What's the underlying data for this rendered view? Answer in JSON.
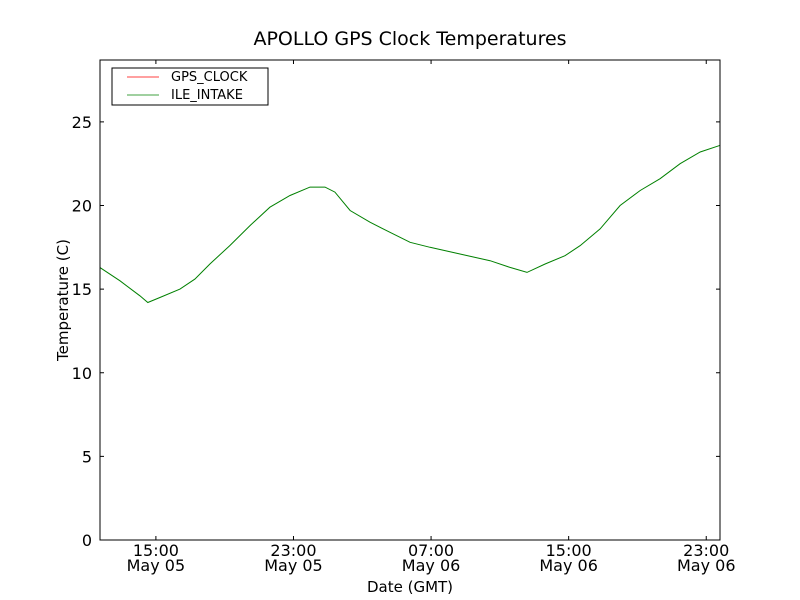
{
  "chart_data": {
    "type": "line",
    "title": "APOLLO GPS Clock Temperatures",
    "xlabel": "Date (GMT)",
    "ylabel": "Temperature (C)",
    "x_unit": "hours since May 05 00:00 GMT",
    "xlim": [
      11.75,
      47.8
    ],
    "ylim": [
      0,
      28.7
    ],
    "yticks": [
      0,
      5,
      10,
      15,
      20,
      25
    ],
    "xticks": [
      {
        "value": 15,
        "time": "15:00",
        "date": "May 05"
      },
      {
        "value": 23,
        "time": "23:00",
        "date": "May 05"
      },
      {
        "value": 31,
        "time": "07:00",
        "date": "May 06"
      },
      {
        "value": 39,
        "time": "15:00",
        "date": "May 06"
      },
      {
        "value": 47,
        "time": "23:00",
        "date": "May 06"
      }
    ],
    "grid": false,
    "legend_position": "top-left",
    "series": [
      {
        "name": "GPS_CLOCK",
        "color": "#ff0000",
        "x": [],
        "values": []
      },
      {
        "name": "ILE_INTAKE",
        "color": "#008000",
        "x": [
          11.74,
          12.91,
          14.07,
          14.53,
          15.23,
          16.4,
          17.27,
          18.14,
          19.3,
          20.47,
          21.63,
          22.8,
          23.96,
          24.83,
          25.41,
          26.29,
          27.45,
          28.61,
          29.78,
          30.94,
          32.68,
          34.43,
          35.59,
          36.58,
          37.63,
          38.79,
          39.67,
          40.83,
          41.99,
          43.16,
          44.32,
          45.48,
          46.65,
          47.81
        ],
        "values": [
          16.3,
          15.5,
          14.6,
          14.2,
          14.5,
          15.0,
          15.6,
          16.5,
          17.6,
          18.8,
          19.9,
          20.6,
          21.1,
          21.1,
          20.8,
          19.7,
          19.0,
          18.4,
          17.8,
          17.5,
          17.1,
          16.7,
          16.3,
          16.0,
          16.5,
          17.0,
          17.6,
          18.6,
          20.0,
          20.9,
          21.6,
          22.5,
          23.2,
          23.6
        ]
      }
    ]
  }
}
